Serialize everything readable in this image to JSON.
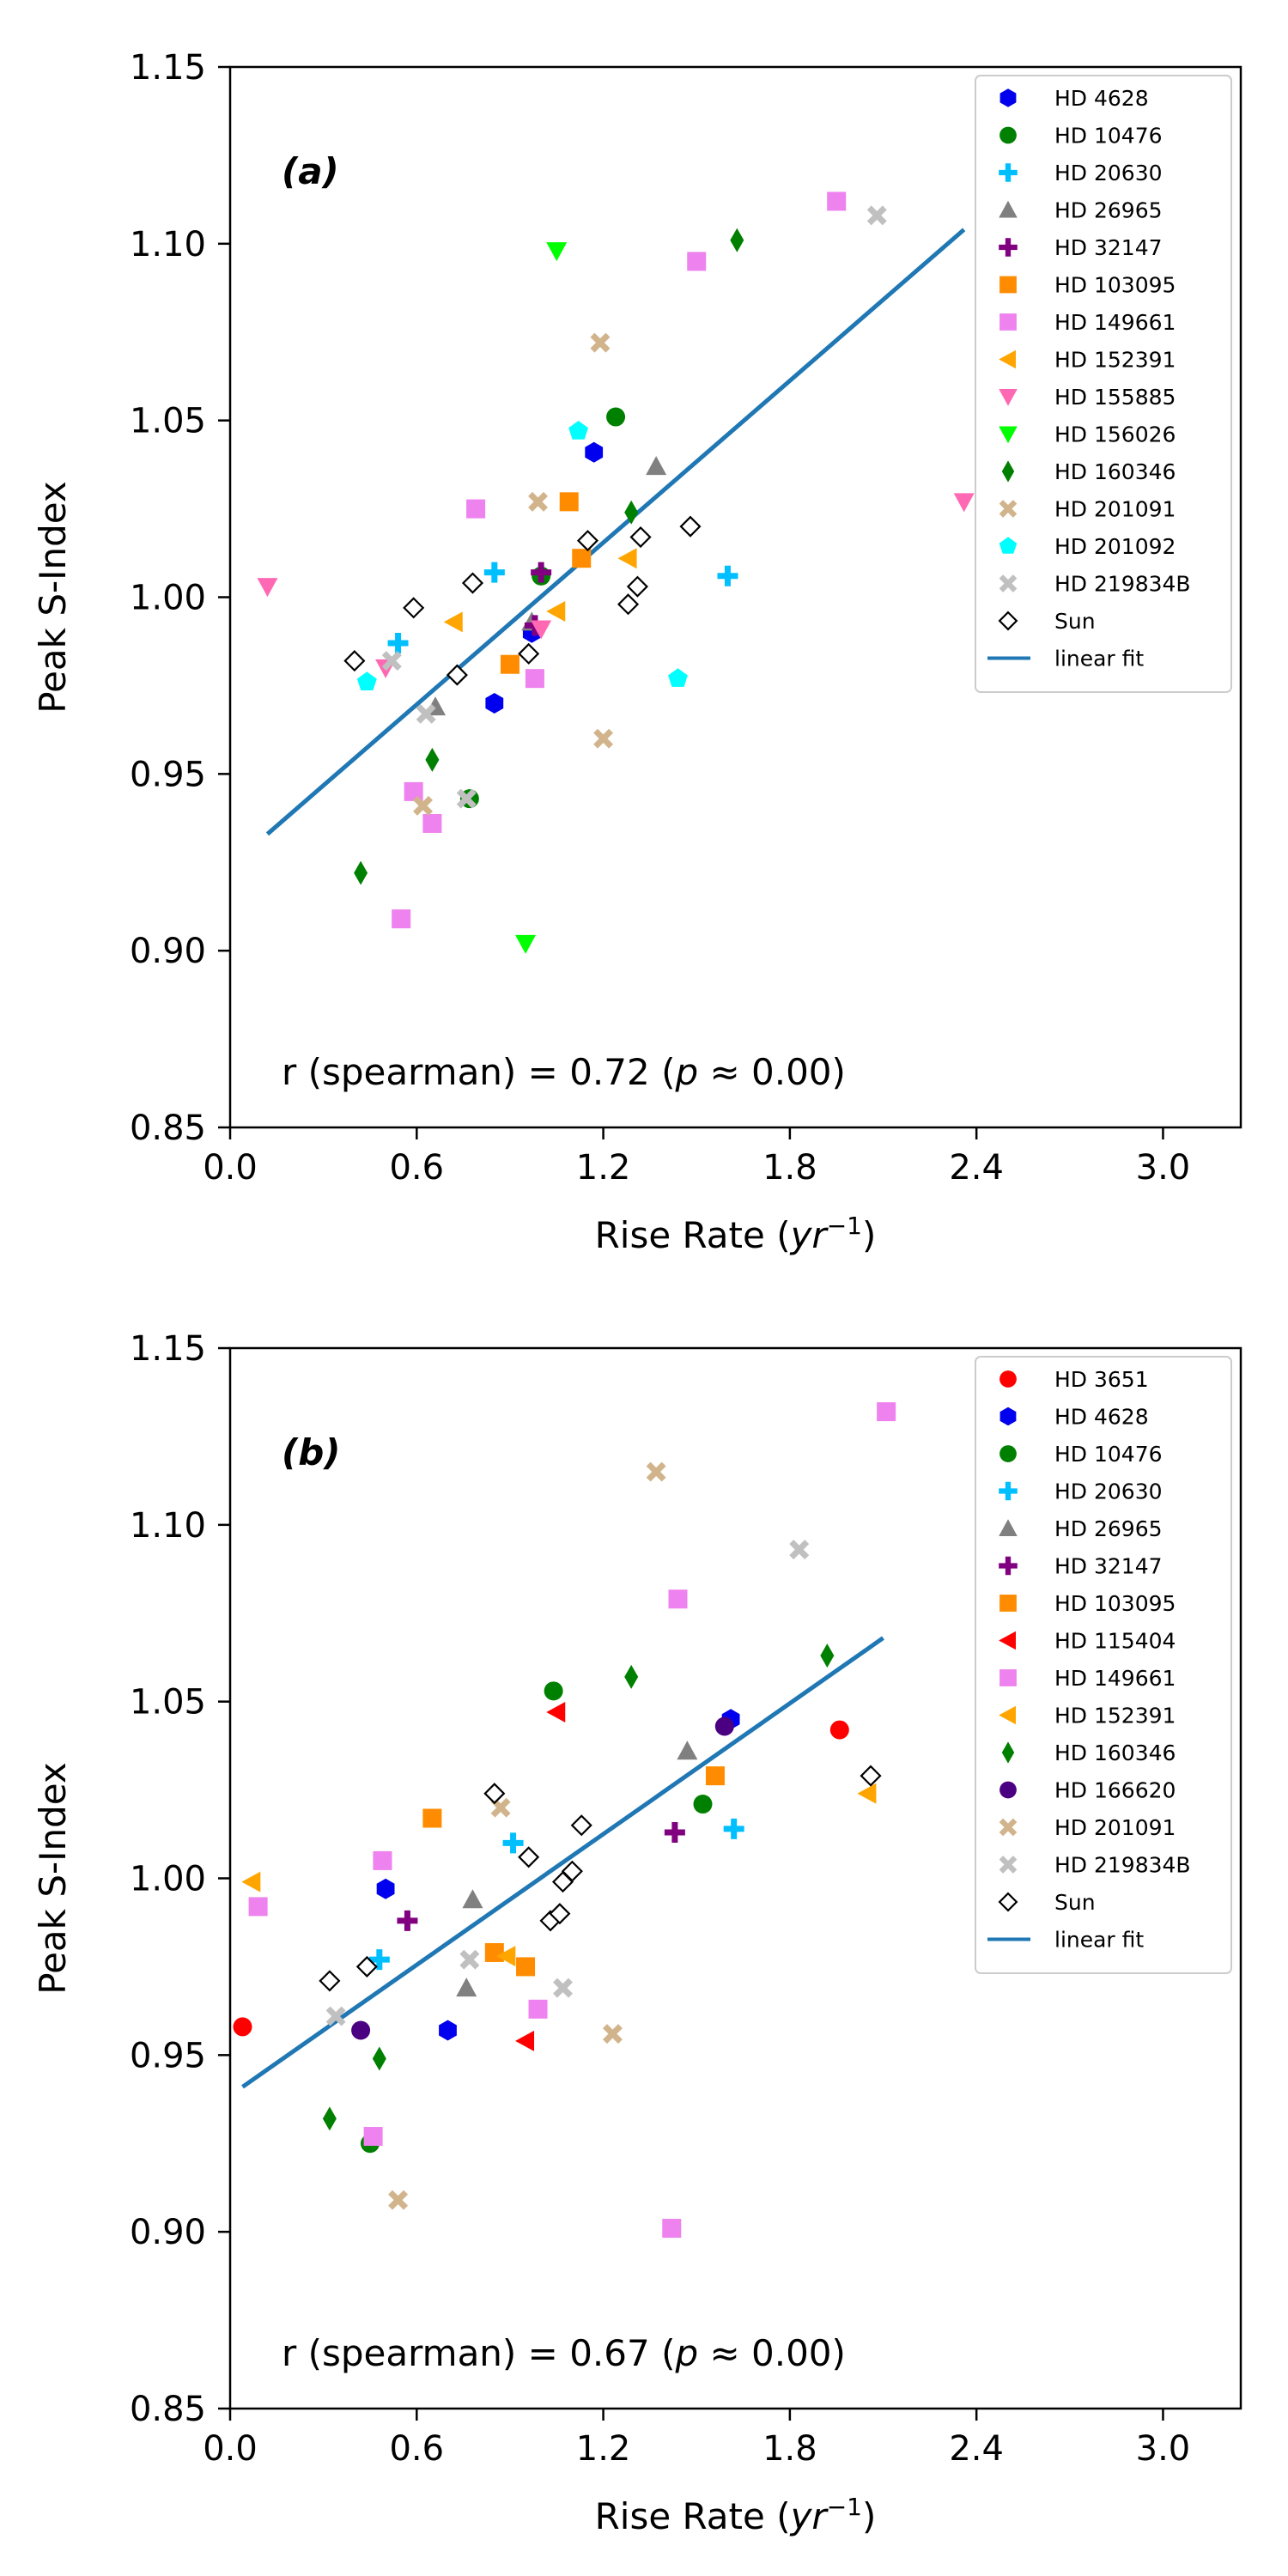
{
  "chart_data": [
    {
      "type": "scatter",
      "panel_label": "(a)",
      "xlabel": "Rise Rate",
      "xlabel_unit": "yr",
      "xlabel_exp": "−1",
      "ylabel": "Peak S-Index",
      "xlim": [
        0,
        3.25
      ],
      "ylim": [
        0.85,
        1.15
      ],
      "xticks": [
        "0.0",
        "0.6",
        "1.2",
        "1.8",
        "2.4",
        "3.0"
      ],
      "yticks": [
        "0.85",
        "0.90",
        "0.95",
        "1.00",
        "1.05",
        "1.10",
        "1.15"
      ],
      "annotation": "r (spearman) = 0.72  (p ≈ 0.00)",
      "legend_position": "top-right",
      "fit": {
        "name": "linear fit",
        "color": "#1f77b4",
        "x": [
          0.12,
          2.36
        ],
        "y": [
          0.933,
          1.104
        ]
      },
      "series": [
        {
          "name": "HD 4628",
          "marker": "hexagon",
          "color": "#0000ee",
          "points": [
            [
              0.85,
              0.97
            ],
            [
              0.97,
              0.99
            ],
            [
              1.17,
              1.041
            ]
          ]
        },
        {
          "name": "HD 10476",
          "marker": "circle",
          "color": "#008000",
          "points": [
            [
              0.77,
              0.943
            ],
            [
              1.24,
              1.051
            ],
            [
              1.0,
              1.006
            ]
          ]
        },
        {
          "name": "HD 20630",
          "marker": "plus",
          "color": "#00bfff",
          "points": [
            [
              0.54,
              0.987
            ],
            [
              0.85,
              1.007
            ],
            [
              1.6,
              1.006
            ]
          ]
        },
        {
          "name": "HD 26965",
          "marker": "triangle-up",
          "color": "#808080",
          "points": [
            [
              0.66,
              0.969
            ],
            [
              0.97,
              0.993
            ],
            [
              1.37,
              1.037
            ]
          ]
        },
        {
          "name": "HD 32147",
          "marker": "plus",
          "color": "#800080",
          "points": [
            [
              1.0,
              1.007
            ],
            [
              0.98,
              0.992
            ]
          ]
        },
        {
          "name": "HD 103095",
          "marker": "square",
          "color": "#ff8c00",
          "points": [
            [
              0.9,
              0.981
            ],
            [
              1.09,
              1.027
            ],
            [
              1.13,
              1.011
            ]
          ]
        },
        {
          "name": "HD 149661",
          "marker": "square",
          "color": "#ee82ee",
          "points": [
            [
              0.55,
              0.909
            ],
            [
              0.59,
              0.945
            ],
            [
              0.65,
              0.936
            ],
            [
              0.79,
              1.025
            ],
            [
              0.98,
              0.977
            ],
            [
              1.5,
              1.095
            ],
            [
              1.95,
              1.112
            ]
          ]
        },
        {
          "name": "HD 152391",
          "marker": "triangle-left",
          "color": "#ffa500",
          "points": [
            [
              0.72,
              0.993
            ],
            [
              1.05,
              0.996
            ],
            [
              1.28,
              1.011
            ]
          ]
        },
        {
          "name": "HD 155885",
          "marker": "triangle-down",
          "color": "#ff69b4",
          "points": [
            [
              0.12,
              1.003
            ],
            [
              0.5,
              0.98
            ],
            [
              1.0,
              0.991
            ],
            [
              2.36,
              1.027
            ]
          ]
        },
        {
          "name": "HD 156026",
          "marker": "triangle-down",
          "color": "#00ff00",
          "points": [
            [
              0.95,
              0.902
            ],
            [
              1.05,
              1.098
            ]
          ]
        },
        {
          "name": "HD 160346",
          "marker": "diamond",
          "color": "#008000",
          "points": [
            [
              0.42,
              0.922
            ],
            [
              0.65,
              0.954
            ],
            [
              1.29,
              1.024
            ],
            [
              1.63,
              1.101
            ]
          ]
        },
        {
          "name": "HD 201091",
          "marker": "x",
          "color": "#d2b48c",
          "points": [
            [
              0.62,
              0.941
            ],
            [
              0.99,
              1.027
            ],
            [
              1.19,
              1.072
            ],
            [
              1.2,
              0.96
            ]
          ]
        },
        {
          "name": "HD 201092",
          "marker": "pentagon",
          "color": "#00ffff",
          "points": [
            [
              0.44,
              0.976
            ],
            [
              1.12,
              1.047
            ],
            [
              1.44,
              0.977
            ]
          ]
        },
        {
          "name": "HD 219834B",
          "marker": "x",
          "color": "#c0c0c0",
          "points": [
            [
              0.52,
              0.982
            ],
            [
              0.63,
              0.967
            ],
            [
              0.76,
              0.943
            ],
            [
              2.08,
              1.108
            ]
          ]
        },
        {
          "name": "Sun",
          "marker": "diamond-open",
          "color": "#000000",
          "points": [
            [
              0.4,
              0.982
            ],
            [
              0.59,
              0.997
            ],
            [
              0.73,
              0.978
            ],
            [
              0.78,
              1.004
            ],
            [
              0.96,
              0.984
            ],
            [
              1.15,
              1.016
            ],
            [
              1.28,
              0.998
            ],
            [
              1.31,
              1.003
            ],
            [
              1.32,
              1.017
            ],
            [
              1.48,
              1.02
            ]
          ]
        }
      ]
    },
    {
      "type": "scatter",
      "panel_label": "(b)",
      "xlabel": "Rise Rate",
      "xlabel_unit": "yr",
      "xlabel_exp": "−1",
      "ylabel": "Peak S-Index",
      "xlim": [
        0,
        3.25
      ],
      "ylim": [
        0.85,
        1.15
      ],
      "xticks": [
        "0.0",
        "0.6",
        "1.2",
        "1.8",
        "2.4",
        "3.0"
      ],
      "yticks": [
        "0.85",
        "0.90",
        "0.95",
        "1.00",
        "1.05",
        "1.10",
        "1.15"
      ],
      "annotation": "r (spearman) = 0.67 (p ≈ 0.00)",
      "legend_position": "top-right",
      "fit": {
        "name": "linear fit",
        "color": "#1f77b4",
        "x": [
          0.04,
          2.1
        ],
        "y": [
          0.941,
          1.068
        ]
      },
      "series": [
        {
          "name": "HD 3651",
          "marker": "circle",
          "color": "#ff0000",
          "points": [
            [
              0.04,
              0.958
            ],
            [
              1.96,
              1.042
            ]
          ]
        },
        {
          "name": "HD 4628",
          "marker": "hexagon",
          "color": "#0000ee",
          "points": [
            [
              0.5,
              0.997
            ],
            [
              0.7,
              0.957
            ],
            [
              1.61,
              1.045
            ]
          ]
        },
        {
          "name": "HD 10476",
          "marker": "circle",
          "color": "#008000",
          "points": [
            [
              0.45,
              0.925
            ],
            [
              1.04,
              1.053
            ],
            [
              1.52,
              1.021
            ]
          ]
        },
        {
          "name": "HD 20630",
          "marker": "plus",
          "color": "#00bfff",
          "points": [
            [
              0.48,
              0.977
            ],
            [
              0.91,
              1.01
            ],
            [
              1.62,
              1.014
            ]
          ]
        },
        {
          "name": "HD 26965",
          "marker": "triangle-up",
          "color": "#808080",
          "points": [
            [
              0.76,
              0.969
            ],
            [
              0.78,
              0.994
            ],
            [
              1.47,
              1.036
            ]
          ]
        },
        {
          "name": "HD 32147",
          "marker": "plus",
          "color": "#800080",
          "points": [
            [
              0.57,
              0.988
            ],
            [
              1.43,
              1.013
            ]
          ]
        },
        {
          "name": "HD 103095",
          "marker": "square",
          "color": "#ff8c00",
          "points": [
            [
              0.65,
              1.017
            ],
            [
              0.85,
              0.979
            ],
            [
              0.95,
              0.975
            ],
            [
              1.56,
              1.029
            ]
          ]
        },
        {
          "name": "HD 115404",
          "marker": "triangle-left",
          "color": "#ff0000",
          "points": [
            [
              0.95,
              0.954
            ],
            [
              1.05,
              1.047
            ]
          ]
        },
        {
          "name": "HD 149661",
          "marker": "square",
          "color": "#ee82ee",
          "points": [
            [
              0.09,
              0.992
            ],
            [
              0.46,
              0.927
            ],
            [
              0.49,
              1.005
            ],
            [
              0.99,
              0.963
            ],
            [
              1.42,
              0.901
            ],
            [
              1.44,
              1.079
            ],
            [
              2.11,
              1.132
            ]
          ]
        },
        {
          "name": "HD 152391",
          "marker": "triangle-left",
          "color": "#ffa500",
          "points": [
            [
              0.07,
              0.999
            ],
            [
              0.89,
              0.978
            ],
            [
              2.05,
              1.024
            ]
          ]
        },
        {
          "name": "HD 160346",
          "marker": "diamond",
          "color": "#008000",
          "points": [
            [
              0.32,
              0.932
            ],
            [
              0.48,
              0.949
            ],
            [
              1.29,
              1.057
            ],
            [
              1.92,
              1.063
            ]
          ]
        },
        {
          "name": "HD 166620",
          "marker": "circle",
          "color": "#4b0082",
          "points": [
            [
              0.42,
              0.957
            ],
            [
              1.59,
              1.043
            ]
          ]
        },
        {
          "name": "HD 201091",
          "marker": "x",
          "color": "#d2b48c",
          "points": [
            [
              0.54,
              0.909
            ],
            [
              0.87,
              1.02
            ],
            [
              1.23,
              0.956
            ],
            [
              1.37,
              1.115
            ]
          ]
        },
        {
          "name": "HD 219834B",
          "marker": "x",
          "color": "#c0c0c0",
          "points": [
            [
              0.34,
              0.961
            ],
            [
              0.77,
              0.977
            ],
            [
              1.07,
              0.969
            ],
            [
              1.83,
              1.093
            ]
          ]
        },
        {
          "name": "Sun",
          "marker": "diamond-open",
          "color": "#000000",
          "points": [
            [
              0.32,
              0.971
            ],
            [
              0.44,
              0.975
            ],
            [
              0.85,
              1.024
            ],
            [
              0.96,
              1.006
            ],
            [
              1.03,
              0.988
            ],
            [
              1.06,
              0.99
            ],
            [
              1.07,
              0.999
            ],
            [
              1.1,
              1.002
            ],
            [
              1.13,
              1.015
            ],
            [
              2.06,
              1.029
            ]
          ]
        }
      ]
    }
  ]
}
